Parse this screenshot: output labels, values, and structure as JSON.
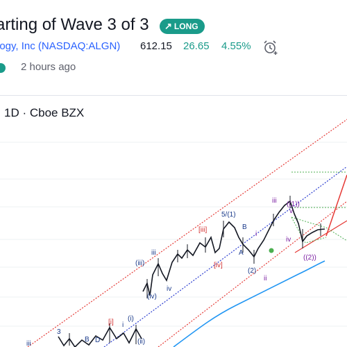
{
  "idea": {
    "title": "arting of Wave 3 of 3",
    "badge": "LONG",
    "badge_icon": "arrow-up-right-icon",
    "company": "logy, Inc (NASDAQ:ALGN)",
    "price": "612.15",
    "change": "26.65",
    "change_pct": "4.55%",
    "posted": "2 hours ago"
  },
  "chart": {
    "label": "1D · Cboe BZX",
    "colors": {
      "up_trend": "#e53935",
      "down_trend": "#2a3ccf",
      "ma": "#2196f3",
      "target": "#e53935",
      "level": "#4caf50",
      "candle": "#131722",
      "accent": "#1a9b8a"
    }
  },
  "wave_labels": {
    "l1": "iii",
    "l2": "3",
    "l3": "B",
    "l4": "D",
    "l5": "[i]",
    "l6": "i",
    "l7": "(i)",
    "l8": "(ii)",
    "l9": "iii",
    "l10": "(iii)",
    "l11": "(iv)",
    "l12": "iv",
    "l13": "[iii]",
    "l14": "[iv]",
    "l15": "5/(1)",
    "l16": "B",
    "l17": "A",
    "l18": "(2)",
    "l19": "ii",
    "l20": "i",
    "l21": "iii",
    "l22": "((1))",
    "l23": "v",
    "l24": "iv",
    "l25": "((2))"
  }
}
